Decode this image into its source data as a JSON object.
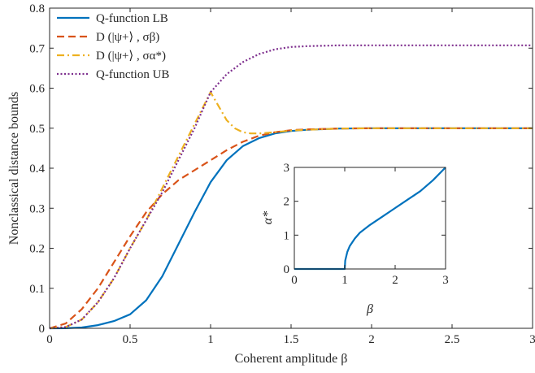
{
  "chart_data": [
    {
      "type": "line",
      "xlabel": "Coherent amplitude β",
      "ylabel": "Nonclassical distance bounds",
      "xlim": [
        0,
        3
      ],
      "ylim": [
        0,
        0.8
      ],
      "xticks": [
        0,
        0.5,
        1,
        1.5,
        2,
        2.5,
        3
      ],
      "xtick_labels": [
        "0",
        "0.5",
        "1",
        "1.5",
        "2",
        "2.5",
        "3"
      ],
      "yticks": [
        0,
        0.1,
        0.2,
        0.3,
        0.4,
        0.5,
        0.6,
        0.7,
        0.8
      ],
      "ytick_labels": [
        "0",
        "0.1",
        "0.2",
        "0.3",
        "0.4",
        "0.5",
        "0.6",
        "0.7",
        "0.8"
      ],
      "grid": false,
      "legend_position": "top-left",
      "series": [
        {
          "name": "Q-function LB",
          "color": "#0072BD",
          "style": "solid",
          "x": [
            0,
            0.1,
            0.2,
            0.3,
            0.4,
            0.5,
            0.6,
            0.7,
            0.8,
            0.9,
            1.0,
            1.1,
            1.2,
            1.3,
            1.4,
            1.5,
            1.6,
            1.8,
            2.0,
            2.5,
            3.0
          ],
          "y": [
            0,
            0.0002,
            0.002,
            0.008,
            0.018,
            0.035,
            0.07,
            0.13,
            0.21,
            0.29,
            0.365,
            0.42,
            0.455,
            0.475,
            0.487,
            0.493,
            0.496,
            0.499,
            0.5,
            0.5,
            0.5
          ]
        },
        {
          "name": "D (|ψ+⟩ , σβ)",
          "color": "#D95319",
          "style": "dashed",
          "x": [
            0,
            0.1,
            0.2,
            0.3,
            0.4,
            0.5,
            0.6,
            0.7,
            0.8,
            0.9,
            1.0,
            1.1,
            1.2,
            1.3,
            1.4,
            1.5,
            1.6,
            1.8,
            2.0,
            2.5,
            3.0
          ],
          "y": [
            0,
            0.012,
            0.048,
            0.1,
            0.165,
            0.23,
            0.29,
            0.335,
            0.37,
            0.395,
            0.42,
            0.445,
            0.466,
            0.481,
            0.49,
            0.495,
            0.497,
            0.499,
            0.5,
            0.5,
            0.5
          ]
        },
        {
          "name": "D (|ψ+⟩ , σα*)",
          "color": "#EDB120",
          "style": "dashdot",
          "x": [
            0,
            0.1,
            0.2,
            0.3,
            0.4,
            0.5,
            0.6,
            0.7,
            0.8,
            0.9,
            1.0,
            1.05,
            1.1,
            1.15,
            1.2,
            1.25,
            1.3,
            1.4,
            1.5,
            1.6,
            1.8,
            2.0,
            2.5,
            3.0
          ],
          "y": [
            0,
            0.003,
            0.022,
            0.065,
            0.125,
            0.2,
            0.27,
            0.35,
            0.43,
            0.51,
            0.59,
            0.555,
            0.52,
            0.5,
            0.49,
            0.487,
            0.487,
            0.49,
            0.494,
            0.496,
            0.499,
            0.5,
            0.5,
            0.5
          ]
        },
        {
          "name": "Q-function UB",
          "color": "#7E2F8E",
          "style": "dotted",
          "x": [
            0,
            0.1,
            0.2,
            0.3,
            0.4,
            0.5,
            0.6,
            0.7,
            0.8,
            0.9,
            1.0,
            1.1,
            1.2,
            1.3,
            1.4,
            1.5,
            1.6,
            1.8,
            2.0,
            2.5,
            3.0
          ],
          "y": [
            0,
            0.003,
            0.022,
            0.065,
            0.125,
            0.2,
            0.27,
            0.34,
            0.42,
            0.5,
            0.59,
            0.635,
            0.665,
            0.685,
            0.697,
            0.703,
            0.705,
            0.707,
            0.707,
            0.707,
            0.707
          ]
        }
      ]
    },
    {
      "type": "line",
      "xlabel": "β",
      "ylabel": "α*",
      "xlim": [
        0,
        3
      ],
      "ylim": [
        0,
        3
      ],
      "xticks": [
        0,
        1,
        2,
        3
      ],
      "xtick_labels": [
        "0",
        "1",
        "2",
        "3"
      ],
      "yticks": [
        0,
        1,
        2,
        3
      ],
      "ytick_labels": [
        "0",
        "1",
        "2",
        "3"
      ],
      "grid": false,
      "series": [
        {
          "color": "#0072BD",
          "style": "solid",
          "x": [
            0,
            1.0,
            1.01,
            1.05,
            1.1,
            1.2,
            1.3,
            1.5,
            1.75,
            2.0,
            2.25,
            2.5,
            2.75,
            3.0
          ],
          "y": [
            0,
            0,
            0.25,
            0.5,
            0.68,
            0.9,
            1.07,
            1.3,
            1.55,
            1.8,
            2.05,
            2.3,
            2.62,
            3.0
          ]
        }
      ]
    }
  ]
}
